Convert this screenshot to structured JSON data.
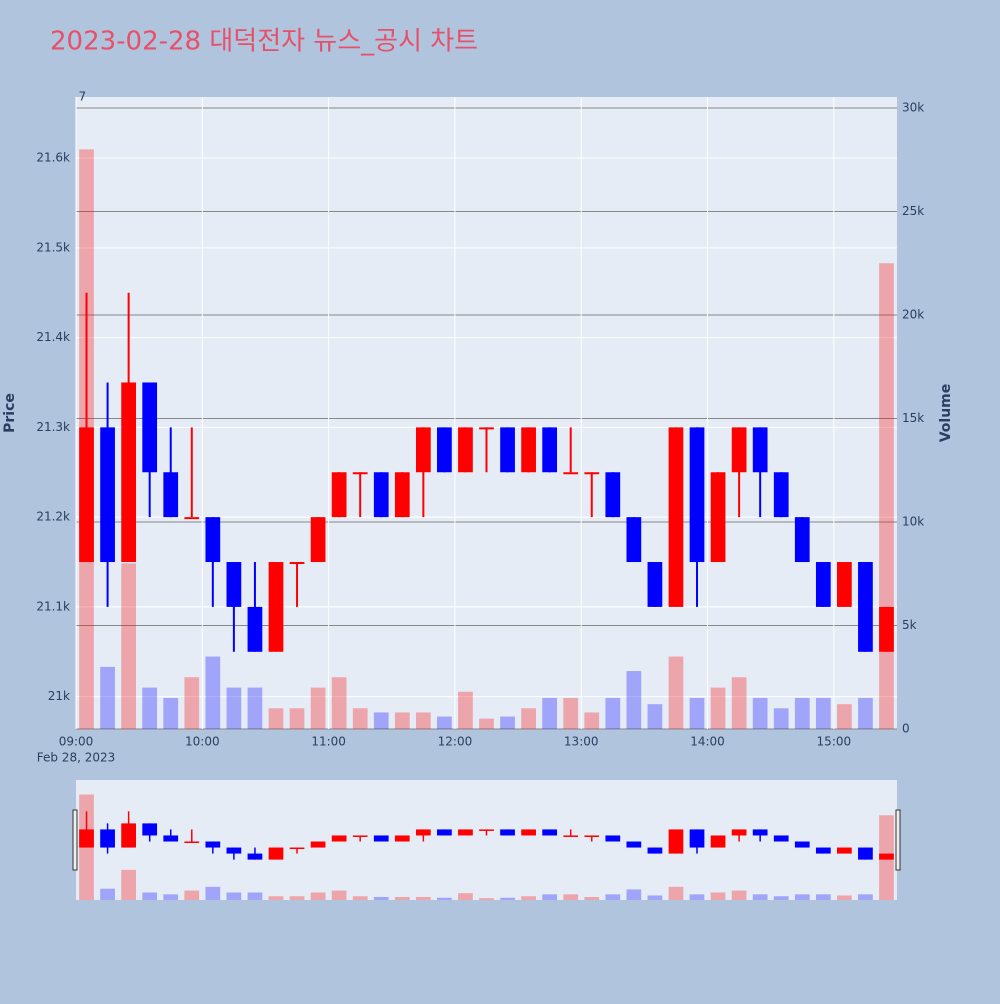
{
  "chart_data": {
    "type": "candlestick",
    "title": "2023-02-28 대덕전자 뉴스_공시 차트",
    "y_title": "Price",
    "y2_title": "Volume",
    "x_date": "Feb 28, 2023",
    "annotation": {
      "text": "7",
      "x": "2023-02-28 09:03"
    },
    "increasing_color": "#ff0000",
    "decreasing_color": "#0000ff",
    "x": [
      "2023-02-28 09:00",
      "2023-02-28 09:10",
      "2023-02-28 09:20",
      "2023-02-28 09:30",
      "2023-02-28 09:40",
      "2023-02-28 09:50",
      "2023-02-28 10:00",
      "2023-02-28 10:10",
      "2023-02-28 10:20",
      "2023-02-28 10:30",
      "2023-02-28 10:40",
      "2023-02-28 10:50",
      "2023-02-28 11:00",
      "2023-02-28 11:10",
      "2023-02-28 11:20",
      "2023-02-28 11:30",
      "2023-02-28 11:40",
      "2023-02-28 11:50",
      "2023-02-28 12:00",
      "2023-02-28 12:10",
      "2023-02-28 12:20",
      "2023-02-28 12:30",
      "2023-02-28 12:40",
      "2023-02-28 12:50",
      "2023-02-28 13:00",
      "2023-02-28 13:10",
      "2023-02-28 13:20",
      "2023-02-28 13:30",
      "2023-02-28 13:40",
      "2023-02-28 13:50",
      "2023-02-28 14:00",
      "2023-02-28 14:10",
      "2023-02-28 14:20",
      "2023-02-28 14:30",
      "2023-02-28 14:40",
      "2023-02-28 14:50",
      "2023-02-28 15:00",
      "2023-02-28 15:10",
      "2023-02-28 15:20"
    ],
    "open": [
      21150,
      21300,
      21150,
      21350,
      21250,
      21200,
      21200,
      21150,
      21100,
      21050,
      21150,
      21150,
      21200,
      21250,
      21250,
      21200,
      21250,
      21300,
      21250,
      21300,
      21300,
      21250,
      21300,
      21250,
      21250,
      21250,
      21200,
      21150,
      21100,
      21300,
      21150,
      21250,
      21300,
      21250,
      21200,
      21150,
      21100,
      21150,
      21050
    ],
    "high": [
      21450,
      21350,
      21450,
      21350,
      21300,
      21300,
      21200,
      21150,
      21150,
      21150,
      21150,
      21200,
      21250,
      21250,
      21250,
      21250,
      21300,
      21300,
      21300,
      21300,
      21300,
      21300,
      21300,
      21300,
      21250,
      21250,
      21200,
      21150,
      21300,
      21300,
      21250,
      21300,
      21300,
      21250,
      21200,
      21150,
      21150,
      21150,
      21100
    ],
    "low": [
      21150,
      21100,
      21150,
      21200,
      21200,
      21200,
      21100,
      21050,
      21050,
      21050,
      21100,
      21150,
      21200,
      21200,
      21200,
      21200,
      21200,
      21250,
      21250,
      21250,
      21250,
      21250,
      21250,
      21250,
      21200,
      21200,
      21150,
      21100,
      21100,
      21100,
      21150,
      21200,
      21200,
      21200,
      21150,
      21100,
      21100,
      21050,
      21050
    ],
    "close": [
      21300,
      21150,
      21350,
      21250,
      21200,
      21200,
      21150,
      21100,
      21050,
      21150,
      21150,
      21200,
      21250,
      21250,
      21200,
      21250,
      21300,
      21250,
      21300,
      21300,
      21250,
      21300,
      21250,
      21250,
      21250,
      21200,
      21150,
      21100,
      21300,
      21150,
      21250,
      21300,
      21250,
      21200,
      21150,
      21100,
      21150,
      21050,
      21100
    ],
    "volume": [
      28000,
      3000,
      8000,
      2000,
      1500,
      2500,
      3500,
      2000,
      2000,
      1000,
      1000,
      2000,
      2500,
      1000,
      800,
      800,
      800,
      600,
      1800,
      500,
      600,
      1000,
      1500,
      1500,
      800,
      1500,
      2800,
      1200,
      3500,
      1500,
      2000,
      2500,
      1500,
      1000,
      1500,
      1500,
      1200,
      1500,
      22500
    ],
    "xlim": [
      "2023-02-28 09:00",
      "2023-02-28 15:30"
    ],
    "xticks": [
      {
        "value": "2023-02-28 09:00",
        "label": "09:00"
      },
      {
        "value": "2023-02-28 10:00",
        "label": "10:00"
      },
      {
        "value": "2023-02-28 11:00",
        "label": "11:00"
      },
      {
        "value": "2023-02-28 12:00",
        "label": "12:00"
      },
      {
        "value": "2023-02-28 13:00",
        "label": "13:00"
      },
      {
        "value": "2023-02-28 14:00",
        "label": "14:00"
      },
      {
        "value": "2023-02-28 15:00",
        "label": "15:00"
      }
    ],
    "ylim": [
      20964,
      21668
    ],
    "yticks": [
      {
        "value": 21000,
        "label": "21k"
      },
      {
        "value": 21100,
        "label": "21.1k"
      },
      {
        "value": 21200,
        "label": "21.2k"
      },
      {
        "value": 21300,
        "label": "21.3k"
      },
      {
        "value": 21400,
        "label": "21.4k"
      },
      {
        "value": 21500,
        "label": "21.5k"
      },
      {
        "value": 21600,
        "label": "21.6k"
      }
    ],
    "y2lim": [
      0,
      30530
    ],
    "y2ticks": [
      0,
      {
        "value": 5000,
        "label": "5k"
      },
      {
        "value": 10000,
        "label": "10k"
      },
      {
        "value": 15000,
        "label": "15k"
      },
      {
        "value": 20000,
        "label": "20k"
      },
      {
        "value": 25000,
        "label": "25k"
      },
      {
        "value": 30000,
        "label": "30k"
      }
    ]
  }
}
